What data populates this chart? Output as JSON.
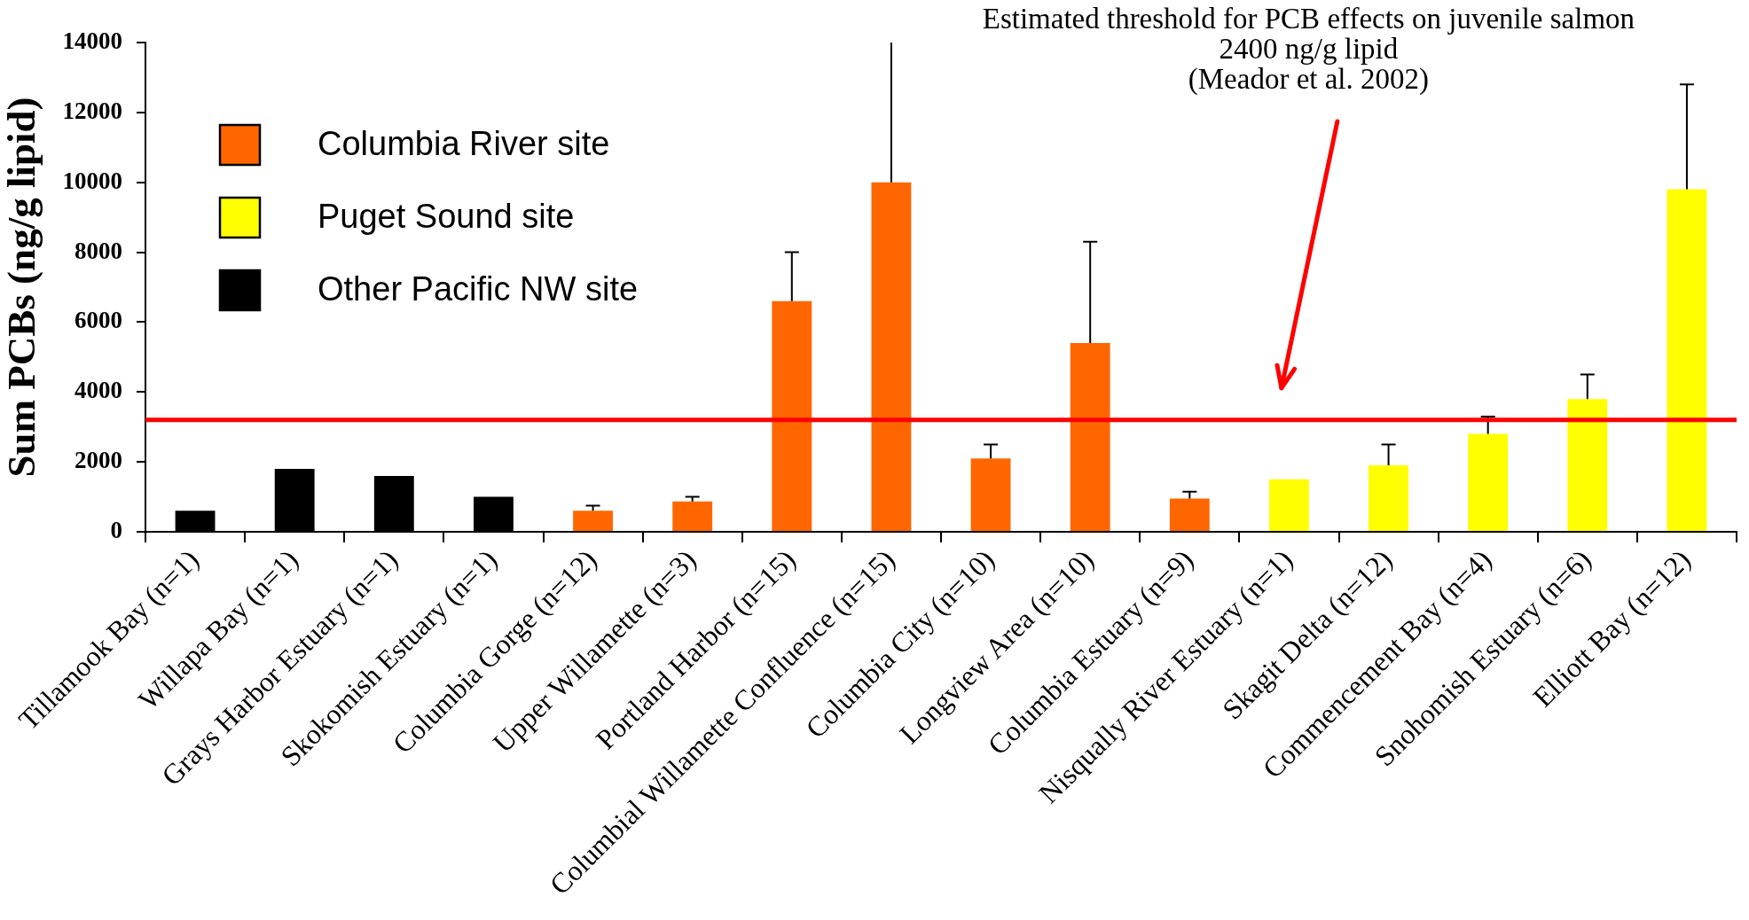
{
  "chart_data": {
    "type": "bar",
    "ylabel": "Sum PCBs (ng/g lipid)",
    "categories": [
      "Tillamook Bay (n=1)",
      "Willapa Bay (n=1)",
      "Grays Harbor Estuary (n=1)",
      "Skokomish Estuary (n=1)",
      "Columbia Gorge (n=12)",
      "Upper Willamette (n=3)",
      "Portland Harbor (n=15)",
      "Columbial Willamette Confluence (n=15)",
      "Columbia City (n=10)",
      "Longview Area (n=10)",
      "Columbia Estuary (n=9)",
      "Nisqually River Estuary (n=1)",
      "Skagit Delta (n=12)",
      "Commencement Bay (n=4)",
      "Snohomish Estuary (n=6)",
      "Elliott Bay (n=12)"
    ],
    "series": [
      {
        "name": "Columbia River site",
        "color": "#ff6600",
        "values": [
          null,
          null,
          null,
          null,
          600,
          870,
          6600,
          10000,
          2100,
          5400,
          950,
          null,
          null,
          null,
          null,
          null
        ],
        "errors": [
          null,
          null,
          null,
          null,
          [
            600,
            750
          ],
          [
            870,
            1000
          ],
          [
            6600,
            8000
          ],
          [
            10000,
            14000
          ],
          [
            2100,
            2500
          ],
          [
            5400,
            8300
          ],
          [
            950,
            1150
          ],
          null,
          null,
          null,
          null,
          null
        ]
      },
      {
        "name": "Puget Sound site",
        "color": "#ffff00",
        "values": [
          null,
          null,
          null,
          null,
          null,
          null,
          null,
          null,
          null,
          null,
          null,
          1500,
          1900,
          2800,
          3800,
          9800
        ],
        "errors": [
          null,
          null,
          null,
          null,
          null,
          null,
          null,
          null,
          null,
          null,
          null,
          null,
          [
            1900,
            2500
          ],
          [
            2800,
            3300
          ],
          [
            3800,
            4500
          ],
          [
            9800,
            12800
          ]
        ]
      },
      {
        "name": "Other Pacific NW site",
        "color": "#000000",
        "values": [
          600,
          1800,
          1600,
          1000,
          null,
          null,
          null,
          null,
          null,
          null,
          null,
          null,
          null,
          null,
          null,
          null
        ]
      }
    ],
    "ylim": [
      0,
      14000
    ],
    "yticks": [
      0,
      2000,
      4000,
      6000,
      8000,
      10000,
      12000,
      14000
    ],
    "ref_lines": [
      {
        "axis": "y",
        "value": 3200,
        "color": "#ff0000"
      }
    ],
    "annotations": [
      "Estimated threshold for PCB effects on juvenile salmon\n2400 ng/g lipid\n(Meador et al. 2002)"
    ],
    "legend": "top left",
    "grid": false
  }
}
